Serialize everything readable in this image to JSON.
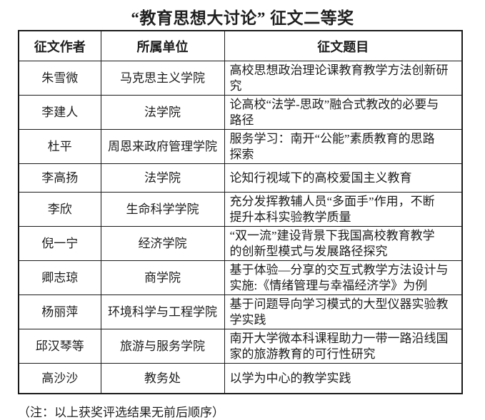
{
  "page": {
    "title": "“教育思想大讨论” 征文二等奖",
    "note": "（注：以上获奖评选结果无前后顺序）",
    "text_color": "#1c1c1c",
    "border_color": "#1a1a1a",
    "background_color": "#ffffff"
  },
  "table": {
    "headers": [
      "征文作者",
      "所属单位",
      "征文题目"
    ],
    "rows": [
      {
        "author": "朱雪微",
        "unit": "马克思主义学院",
        "title": "高校思想政治理论课教育教学方法创新研\n究"
      },
      {
        "author": "李建人",
        "unit": "法学院",
        "title": "论高校“法学-思政”融合式教改的必要与\n路径"
      },
      {
        "author": "杜平",
        "unit": "周恩来政府管理学院",
        "title": "服务学习：南开“公能”素质教育的思路\n探索"
      },
      {
        "author": "李高扬",
        "unit": "法学院",
        "title": "论知行视域下的高校爱国主义教育"
      },
      {
        "author": "李欣",
        "unit": "生命科学学院",
        "title": "充分发挥教辅人员“多面手”作用，不断\n提升本科实验教学质量"
      },
      {
        "author": "倪一宁",
        "unit": "经济学院",
        "title": "“双一流”建设背景下我国高校教育教学\n的创新型模式与发展路径探究"
      },
      {
        "author": "卿志琼",
        "unit": "商学院",
        "title": "基于体验—分享的交互式教学方法设计与\n实施:《情绪管理与幸福经济学》为例"
      },
      {
        "author": "杨丽萍",
        "unit": "环境科学与工程学院",
        "title": "基于问题导向学习模式的大型仪器实验教\n学实践"
      },
      {
        "author": "邱汉琴等",
        "unit": "旅游与服务学院",
        "title": "南开大学微本科课程助力一带一路沿线国\n家的旅游教育的可行性研究"
      },
      {
        "author": "高沙沙",
        "unit": "教务处",
        "title": "以学为中心的教学实践"
      }
    ]
  }
}
